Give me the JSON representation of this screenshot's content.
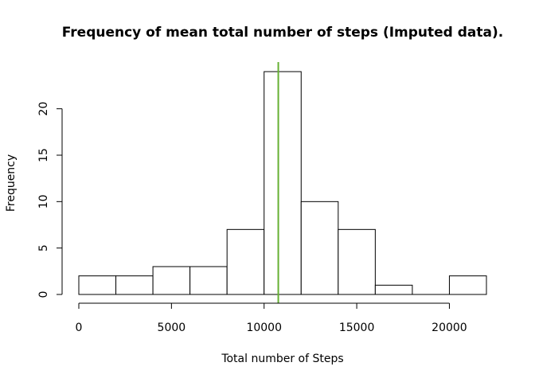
{
  "chart_data": {
    "type": "bar",
    "title": "Frequency of mean total number of steps (Imputed data).",
    "xlabel": "Total number of Steps",
    "ylabel": "Frequency",
    "bins": [
      {
        "x0": 0,
        "x1": 2000,
        "count": 2
      },
      {
        "x0": 2000,
        "x1": 4000,
        "count": 2
      },
      {
        "x0": 4000,
        "x1": 6000,
        "count": 3
      },
      {
        "x0": 6000,
        "x1": 8000,
        "count": 3
      },
      {
        "x0": 8000,
        "x1": 10000,
        "count": 7
      },
      {
        "x0": 10000,
        "x1": 12000,
        "count": 24
      },
      {
        "x0": 12000,
        "x1": 14000,
        "count": 10
      },
      {
        "x0": 14000,
        "x1": 16000,
        "count": 7
      },
      {
        "x0": 16000,
        "x1": 18000,
        "count": 1
      },
      {
        "x0": 18000,
        "x1": 20000,
        "count": 0
      },
      {
        "x0": 20000,
        "x1": 22000,
        "count": 2
      }
    ],
    "mean_line": {
      "x": 10766,
      "color": "#66b032"
    },
    "xlim": [
      0,
      22000
    ],
    "ylim": [
      0,
      24
    ],
    "x_ticks": [
      0,
      5000,
      10000,
      15000,
      20000
    ],
    "y_ticks": [
      0,
      5,
      10,
      15,
      20
    ],
    "grid": false,
    "legend": "none"
  }
}
